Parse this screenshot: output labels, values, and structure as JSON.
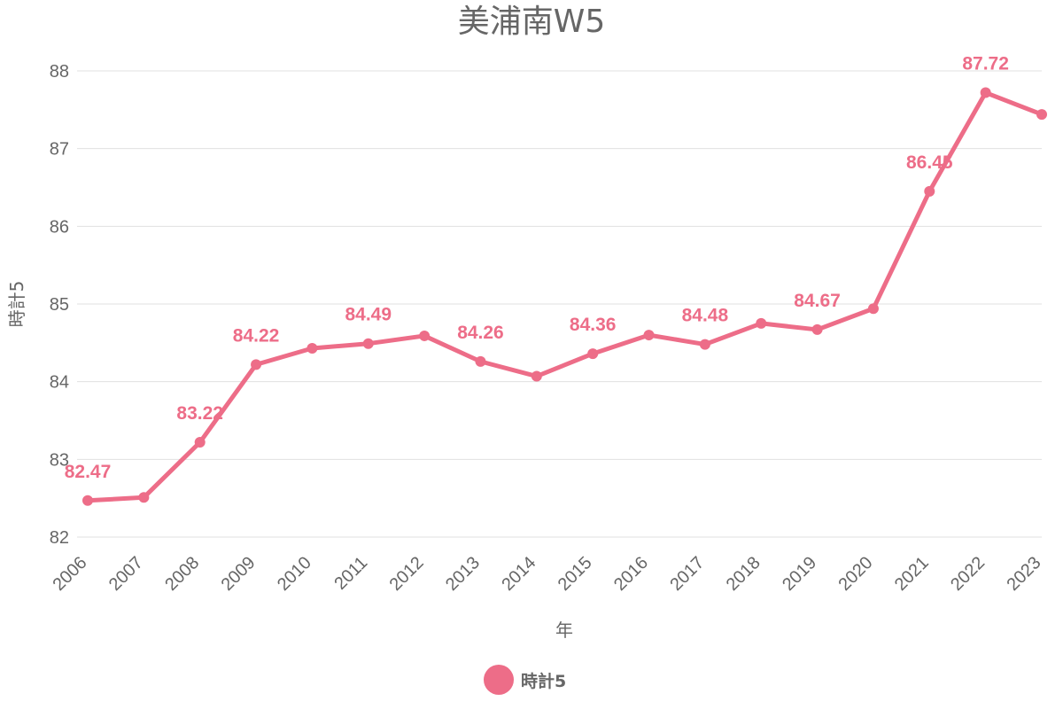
{
  "chart_data": {
    "type": "line",
    "title": "美浦南W5",
    "xlabel": "年",
    "ylabel": "時計5",
    "ylim": [
      82,
      88
    ],
    "yticks": [
      82,
      83,
      84,
      85,
      86,
      87,
      88
    ],
    "grid": true,
    "legend_position": "bottom",
    "color": "#ed6d88",
    "categories": [
      "2006",
      "2007",
      "2008",
      "2009",
      "2010",
      "2011",
      "2012",
      "2013",
      "2014",
      "2015",
      "2016",
      "2017",
      "2018",
      "2019",
      "2020",
      "2021",
      "2022",
      "2023"
    ],
    "series": [
      {
        "name": "時計5",
        "values": [
          82.47,
          82.51,
          83.22,
          84.22,
          84.43,
          84.49,
          84.59,
          84.26,
          84.07,
          84.36,
          84.6,
          84.48,
          84.75,
          84.67,
          84.94,
          86.45,
          87.72,
          87.44
        ],
        "labeled_points": [
          {
            "category": "2006",
            "label": "82.47"
          },
          {
            "category": "2008",
            "label": "83.22"
          },
          {
            "category": "2009",
            "label": "84.22"
          },
          {
            "category": "2011",
            "label": "84.49"
          },
          {
            "category": "2013",
            "label": "84.26"
          },
          {
            "category": "2015",
            "label": "84.36"
          },
          {
            "category": "2017",
            "label": "84.48"
          },
          {
            "category": "2019",
            "label": "84.67"
          },
          {
            "category": "2021",
            "label": "86.45"
          },
          {
            "category": "2022",
            "label": "87.72"
          }
        ]
      }
    ]
  }
}
